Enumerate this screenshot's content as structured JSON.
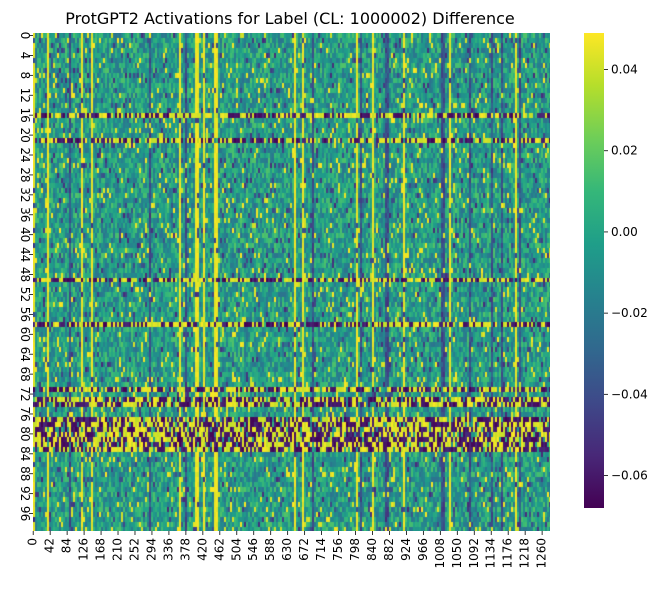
{
  "chart_data": {
    "type": "heatmap",
    "title": "ProtGPT2 Activations for Label (CL: 1000002) Difference",
    "xlabel": "",
    "ylabel": "",
    "colormap": "viridis",
    "colormap_stops": [
      "#440154",
      "#482878",
      "#3e4989",
      "#31688e",
      "#26828e",
      "#1f9e89",
      "#35b779",
      "#6ece58",
      "#b5de2b",
      "#fde725"
    ],
    "value_range": [
      -0.068,
      0.049
    ],
    "rows": 100,
    "columns": 1280,
    "x_tick_labels": [
      "0",
      "42",
      "84",
      "126",
      "168",
      "210",
      "252",
      "294",
      "336",
      "378",
      "420",
      "462",
      "504",
      "546",
      "588",
      "630",
      "672",
      "714",
      "756",
      "798",
      "840",
      "882",
      "924",
      "966",
      "1008",
      "1050",
      "1092",
      "1134",
      "1176",
      "1218",
      "1260"
    ],
    "y_tick_labels": [
      "0",
      "4",
      "8",
      "12",
      "16",
      "20",
      "24",
      "28",
      "32",
      "36",
      "40",
      "44",
      "48",
      "52",
      "56",
      "60",
      "64",
      "68",
      "72",
      "76",
      "80",
      "84",
      "88",
      "92",
      "96"
    ],
    "colorbar_tick_values": [
      0.04,
      0.02,
      0.0,
      -0.02,
      -0.04,
      -0.06
    ],
    "colorbar_tick_labels": [
      "0.04",
      "0.02",
      "0.00",
      "−0.02",
      "−0.04",
      "−0.06"
    ],
    "high_variance_rows": [
      16,
      21,
      49,
      58,
      71,
      73,
      74,
      77,
      78,
      79,
      80,
      81,
      82,
      83
    ],
    "grid": false
  }
}
